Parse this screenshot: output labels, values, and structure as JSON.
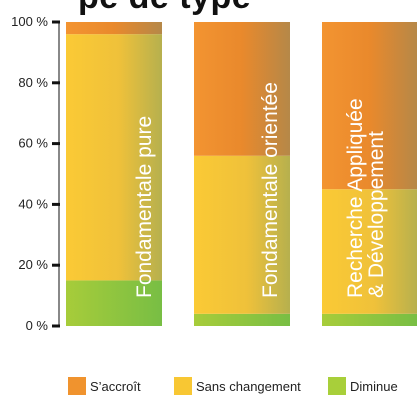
{
  "title_fragment": "pe de type",
  "colors": {
    "increase": "#f0932e",
    "nochange": "#f8c733",
    "decrease": "#a8cf3a",
    "axis": "#111111"
  },
  "chart_data": {
    "type": "bar",
    "stacked": true,
    "ylim": [
      0,
      100
    ],
    "yticks": [
      0,
      20,
      40,
      60,
      80,
      100
    ],
    "ytick_labels": [
      "0 %",
      "20 %",
      "40 %",
      "60 %",
      "80 %",
      "100 %"
    ],
    "categories": [
      "Fondamentale pure",
      "Fondamentale orientée",
      "Recherche Appliquée & Développement"
    ],
    "category_lines": [
      [
        "Fondamentale pure"
      ],
      [
        "Fondamentale orientée"
      ],
      [
        "Recherche Appliquée",
        "& Développement"
      ]
    ],
    "series": [
      {
        "name": "Diminue",
        "values": [
          15,
          4,
          4
        ]
      },
      {
        "name": "Sans changement",
        "values": [
          81,
          52,
          41
        ]
      },
      {
        "name": "S’accroît",
        "values": [
          4,
          44,
          55
        ]
      }
    ],
    "legend_position": "bottom"
  }
}
